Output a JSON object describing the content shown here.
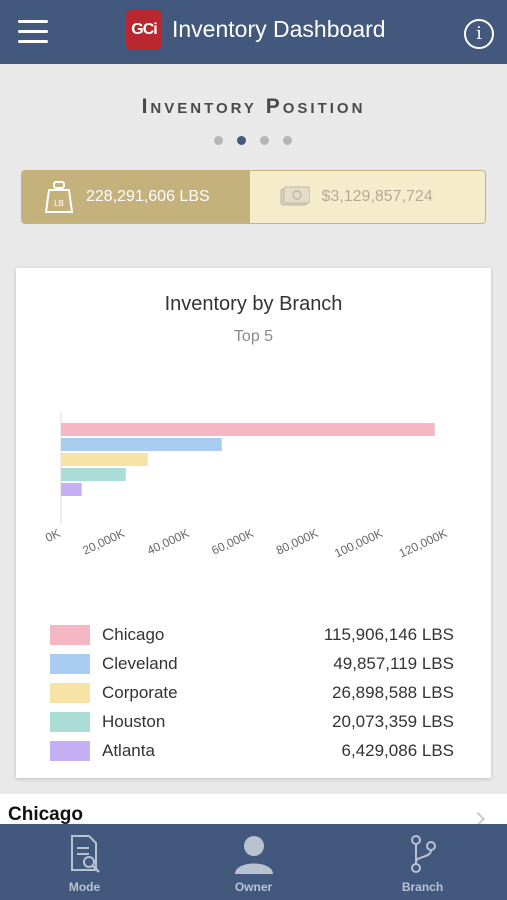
{
  "header": {
    "logo_text": "GCi",
    "title": "Inventory Dashboard",
    "info_label": "i"
  },
  "section": {
    "title": "Inventory Position",
    "page_count": 4,
    "active_page": 1
  },
  "toggle": {
    "weight_label": "228,291,606 LBS",
    "value_label": "$3,129,857,724",
    "selected": "weight"
  },
  "chart_data": {
    "type": "bar",
    "orientation": "horizontal",
    "title": "Inventory by Branch",
    "subtitle": "Top 5",
    "categories": [
      "Chicago",
      "Cleveland",
      "Corporate",
      "Houston",
      "Atlanta"
    ],
    "values": [
      115906146,
      49857119,
      26898588,
      20073359,
      6429086
    ],
    "value_labels": [
      "115,906,146 LBS",
      "49,857,119 LBS",
      "26,898,588 LBS",
      "20,073,359 LBS",
      "6,429,086 LBS"
    ],
    "colors": [
      "#f4b7c3",
      "#a9cdf0",
      "#f8e3a6",
      "#a9ddd6",
      "#c6b0f5"
    ],
    "xlim": [
      0,
      120000000
    ],
    "x_ticks": [
      0,
      20000000,
      40000000,
      60000000,
      80000000,
      100000000,
      120000000
    ],
    "x_tick_labels": [
      "0K",
      "20,000K",
      "40,000K",
      "60,000K",
      "80,000K",
      "100,000K",
      "120,000K"
    ],
    "legend_position": "bottom"
  },
  "list": {
    "first_item": "Chicago"
  },
  "bottom_nav": {
    "items": [
      {
        "label": "Mode"
      },
      {
        "label": "Owner"
      },
      {
        "label": "Branch"
      }
    ]
  }
}
